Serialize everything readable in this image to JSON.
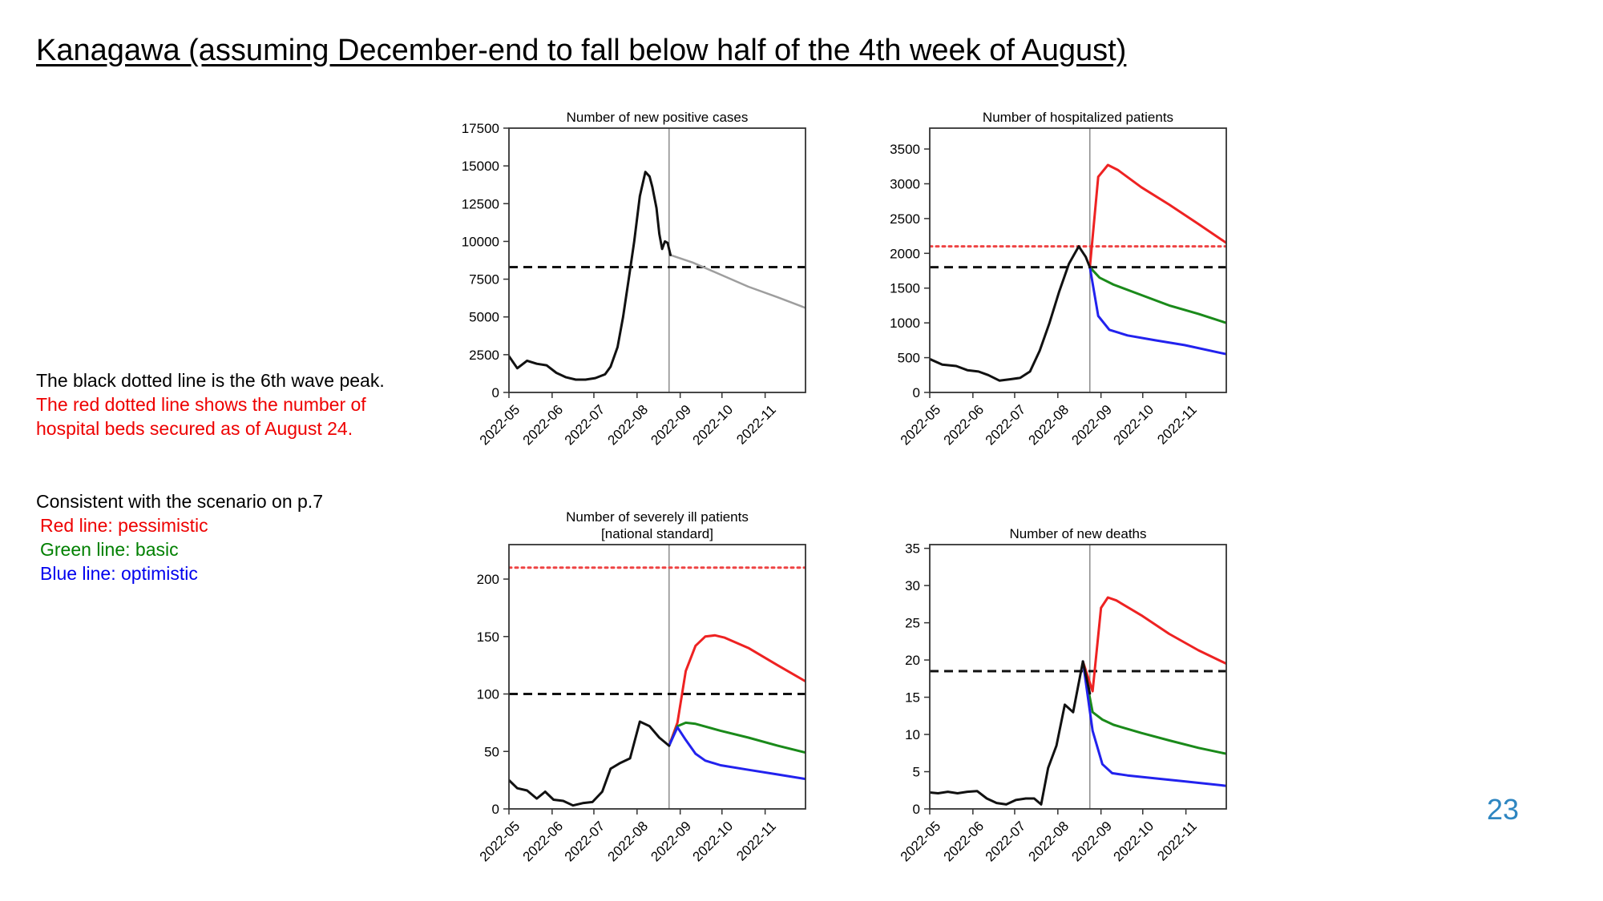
{
  "page": {
    "title": "Kanagawa (assuming December-end to fall below half of the 4th week of August)",
    "page_number": "23",
    "note1": {
      "line1": "The black dotted line is the 6th wave peak.",
      "line2": "The red dotted line shows the number of",
      "line3": "hospital beds secured as of August 24."
    },
    "note2": {
      "line1": "Consistent with the scenario on p.7",
      "line2": "Red line: pessimistic",
      "line3": "Green line: basic",
      "line4": "Blue line: optimistic"
    }
  },
  "colors": {
    "actual": "#111111",
    "forecast": "#9e9e9e",
    "pessimistic": "#ee2222",
    "basic": "#1a8a1a",
    "optimistic": "#2222ee",
    "sixth_wave_peak": "#111111",
    "beds_secured": "#ee4444",
    "note_red": "#ee0000",
    "note_green": "#008000",
    "note_blue": "#0000ee",
    "page_number": "#2e86c1"
  },
  "chart_data": [
    {
      "id": "positive",
      "type": "line",
      "title": [
        "Number of new positive cases"
      ],
      "x_ticks": [
        "2022-05",
        "2022-06",
        "2022-07",
        "2022-08",
        "2022-09",
        "2022-10",
        "2022-11"
      ],
      "x_range": [
        "2022-05-01",
        "2022-11-30"
      ],
      "ylim": [
        0,
        17500
      ],
      "y_ticks": [
        0,
        2500,
        5000,
        7500,
        10000,
        12500,
        15000,
        17500
      ],
      "grid": false,
      "current_date_line": "2022-08-24",
      "reference_lines": [
        {
          "label": "sixth_wave_peak",
          "value": 8300,
          "style": "dashed"
        }
      ],
      "series": [
        {
          "role": "actual",
          "points": [
            [
              "2022-05-01",
              2400
            ],
            [
              "2022-05-07",
              1600
            ],
            [
              "2022-05-14",
              2100
            ],
            [
              "2022-05-21",
              1900
            ],
            [
              "2022-05-28",
              1800
            ],
            [
              "2022-06-04",
              1300
            ],
            [
              "2022-06-11",
              1000
            ],
            [
              "2022-06-18",
              850
            ],
            [
              "2022-06-25",
              850
            ],
            [
              "2022-07-02",
              950
            ],
            [
              "2022-07-09",
              1200
            ],
            [
              "2022-07-13",
              1700
            ],
            [
              "2022-07-18",
              3000
            ],
            [
              "2022-07-22",
              5000
            ],
            [
              "2022-07-26",
              7500
            ],
            [
              "2022-07-30",
              10000
            ],
            [
              "2022-08-03",
              13000
            ],
            [
              "2022-08-07",
              14600
            ],
            [
              "2022-08-10",
              14300
            ],
            [
              "2022-08-12",
              13600
            ],
            [
              "2022-08-15",
              12200
            ],
            [
              "2022-08-17",
              10500
            ],
            [
              "2022-08-19",
              9500
            ],
            [
              "2022-08-21",
              10000
            ],
            [
              "2022-08-23",
              9900
            ],
            [
              "2022-08-25",
              9100
            ]
          ]
        },
        {
          "role": "forecast",
          "points": [
            [
              "2022-08-25",
              9100
            ],
            [
              "2022-09-10",
              8600
            ],
            [
              "2022-09-30",
              7800
            ],
            [
              "2022-10-20",
              7000
            ],
            [
              "2022-11-10",
              6300
            ],
            [
              "2022-11-30",
              5600
            ]
          ]
        }
      ]
    },
    {
      "id": "hospitalized",
      "type": "line",
      "title": [
        "Number of hospitalized patients"
      ],
      "x_ticks": [
        "2022-05",
        "2022-06",
        "2022-07",
        "2022-08",
        "2022-09",
        "2022-10",
        "2022-11"
      ],
      "x_range": [
        "2022-05-01",
        "2022-11-30"
      ],
      "ylim": [
        0,
        3800
      ],
      "y_ticks": [
        0,
        500,
        1000,
        1500,
        2000,
        2500,
        3000,
        3500
      ],
      "grid": false,
      "current_date_line": "2022-08-24",
      "reference_lines": [
        {
          "label": "sixth_wave_peak",
          "value": 1800,
          "style": "dashed"
        },
        {
          "label": "beds_secured",
          "value": 2100,
          "style": "dotted"
        }
      ],
      "series": [
        {
          "role": "actual",
          "points": [
            [
              "2022-05-01",
              480
            ],
            [
              "2022-05-10",
              400
            ],
            [
              "2022-05-20",
              380
            ],
            [
              "2022-05-28",
              320
            ],
            [
              "2022-06-05",
              300
            ],
            [
              "2022-06-12",
              250
            ],
            [
              "2022-06-20",
              170
            ],
            [
              "2022-06-28",
              190
            ],
            [
              "2022-07-05",
              210
            ],
            [
              "2022-07-12",
              300
            ],
            [
              "2022-07-19",
              600
            ],
            [
              "2022-07-26",
              1000
            ],
            [
              "2022-08-02",
              1450
            ],
            [
              "2022-08-09",
              1850
            ],
            [
              "2022-08-16",
              2100
            ],
            [
              "2022-08-21",
              1950
            ],
            [
              "2022-08-24",
              1800
            ]
          ]
        },
        {
          "role": "pessimistic",
          "points": [
            [
              "2022-08-24",
              1800
            ],
            [
              "2022-08-30",
              3100
            ],
            [
              "2022-09-06",
              3270
            ],
            [
              "2022-09-13",
              3200
            ],
            [
              "2022-09-30",
              2950
            ],
            [
              "2022-10-20",
              2700
            ],
            [
              "2022-11-10",
              2420
            ],
            [
              "2022-11-30",
              2150
            ]
          ]
        },
        {
          "role": "basic",
          "points": [
            [
              "2022-08-24",
              1800
            ],
            [
              "2022-08-31",
              1650
            ],
            [
              "2022-09-10",
              1550
            ],
            [
              "2022-09-30",
              1400
            ],
            [
              "2022-10-20",
              1250
            ],
            [
              "2022-11-10",
              1130
            ],
            [
              "2022-11-30",
              1000
            ]
          ]
        },
        {
          "role": "optimistic",
          "points": [
            [
              "2022-08-24",
              1800
            ],
            [
              "2022-08-30",
              1100
            ],
            [
              "2022-09-07",
              900
            ],
            [
              "2022-09-20",
              820
            ],
            [
              "2022-10-10",
              750
            ],
            [
              "2022-10-31",
              680
            ],
            [
              "2022-11-30",
              550
            ]
          ]
        }
      ]
    },
    {
      "id": "severe",
      "type": "line",
      "title": [
        "Number of severely ill patients",
        "[national standard]"
      ],
      "x_ticks": [
        "2022-05",
        "2022-06",
        "2022-07",
        "2022-08",
        "2022-09",
        "2022-10",
        "2022-11"
      ],
      "x_range": [
        "2022-05-01",
        "2022-11-30"
      ],
      "ylim": [
        0,
        230
      ],
      "y_ticks": [
        0,
        50,
        100,
        150,
        200
      ],
      "grid": false,
      "current_date_line": "2022-08-24",
      "reference_lines": [
        {
          "label": "sixth_wave_peak",
          "value": 100,
          "style": "dashed"
        },
        {
          "label": "beds_secured",
          "value": 210,
          "style": "dotted"
        }
      ],
      "series": [
        {
          "role": "actual",
          "points": [
            [
              "2022-05-01",
              25
            ],
            [
              "2022-05-07",
              18
            ],
            [
              "2022-05-14",
              16
            ],
            [
              "2022-05-21",
              9
            ],
            [
              "2022-05-27",
              15
            ],
            [
              "2022-06-02",
              8
            ],
            [
              "2022-06-09",
              7
            ],
            [
              "2022-06-16",
              3
            ],
            [
              "2022-06-23",
              5
            ],
            [
              "2022-06-30",
              6
            ],
            [
              "2022-07-07",
              15
            ],
            [
              "2022-07-13",
              35
            ],
            [
              "2022-07-20",
              40
            ],
            [
              "2022-07-27",
              44
            ],
            [
              "2022-08-03",
              76
            ],
            [
              "2022-08-10",
              72
            ],
            [
              "2022-08-17",
              62
            ],
            [
              "2022-08-24",
              55
            ]
          ]
        },
        {
          "role": "pessimistic",
          "points": [
            [
              "2022-08-24",
              55
            ],
            [
              "2022-08-30",
              75
            ],
            [
              "2022-09-05",
              120
            ],
            [
              "2022-09-12",
              142
            ],
            [
              "2022-09-19",
              150
            ],
            [
              "2022-09-26",
              151
            ],
            [
              "2022-10-03",
              149
            ],
            [
              "2022-10-20",
              140
            ],
            [
              "2022-11-10",
              125
            ],
            [
              "2022-11-30",
              111
            ]
          ]
        },
        {
          "role": "basic",
          "points": [
            [
              "2022-08-24",
              55
            ],
            [
              "2022-08-30",
              72
            ],
            [
              "2022-09-05",
              75
            ],
            [
              "2022-09-12",
              74
            ],
            [
              "2022-09-30",
              68
            ],
            [
              "2022-10-20",
              62
            ],
            [
              "2022-11-10",
              55
            ],
            [
              "2022-11-30",
              49
            ]
          ]
        },
        {
          "role": "optimistic",
          "points": [
            [
              "2022-08-24",
              55
            ],
            [
              "2022-08-30",
              71
            ],
            [
              "2022-09-05",
              60
            ],
            [
              "2022-09-12",
              48
            ],
            [
              "2022-09-19",
              42
            ],
            [
              "2022-09-30",
              38
            ],
            [
              "2022-10-20",
              34
            ],
            [
              "2022-11-10",
              30
            ],
            [
              "2022-11-30",
              26
            ]
          ]
        }
      ]
    },
    {
      "id": "deaths",
      "type": "line",
      "title": [
        "Number of new deaths"
      ],
      "x_ticks": [
        "2022-05",
        "2022-06",
        "2022-07",
        "2022-08",
        "2022-09",
        "2022-10",
        "2022-11"
      ],
      "x_range": [
        "2022-05-01",
        "2022-11-30"
      ],
      "ylim": [
        0,
        35.5
      ],
      "y_ticks": [
        0,
        5,
        10,
        15,
        20,
        25,
        30,
        35
      ],
      "grid": false,
      "current_date_line": "2022-08-24",
      "reference_lines": [
        {
          "label": "sixth_wave_peak",
          "value": 18.5,
          "style": "dashed"
        }
      ],
      "series": [
        {
          "role": "actual",
          "points": [
            [
              "2022-05-01",
              2.2
            ],
            [
              "2022-05-07",
              2.1
            ],
            [
              "2022-05-14",
              2.3
            ],
            [
              "2022-05-21",
              2.1
            ],
            [
              "2022-05-28",
              2.3
            ],
            [
              "2022-06-04",
              2.4
            ],
            [
              "2022-06-11",
              1.4
            ],
            [
              "2022-06-18",
              0.8
            ],
            [
              "2022-06-25",
              0.6
            ],
            [
              "2022-07-02",
              1.2
            ],
            [
              "2022-07-09",
              1.4
            ],
            [
              "2022-07-15",
              1.4
            ],
            [
              "2022-07-20",
              0.6
            ],
            [
              "2022-07-25",
              5.5
            ],
            [
              "2022-07-31",
              8.5
            ],
            [
              "2022-08-06",
              14
            ],
            [
              "2022-08-12",
              13
            ],
            [
              "2022-08-19",
              19.8
            ],
            [
              "2022-08-24",
              15.5
            ]
          ]
        },
        {
          "role": "pessimistic",
          "points": [
            [
              "2022-08-19",
              19.8
            ],
            [
              "2022-08-26",
              15.8
            ],
            [
              "2022-09-01",
              27
            ],
            [
              "2022-09-06",
              28.4
            ],
            [
              "2022-09-12",
              28
            ],
            [
              "2022-09-30",
              26
            ],
            [
              "2022-10-20",
              23.5
            ],
            [
              "2022-11-10",
              21.3
            ],
            [
              "2022-11-30",
              19.5
            ]
          ]
        },
        {
          "role": "basic",
          "points": [
            [
              "2022-08-19",
              19.8
            ],
            [
              "2022-08-26",
              13
            ],
            [
              "2022-09-02",
              12
            ],
            [
              "2022-09-10",
              11.3
            ],
            [
              "2022-09-30",
              10.2
            ],
            [
              "2022-10-20",
              9.2
            ],
            [
              "2022-11-10",
              8.2
            ],
            [
              "2022-11-30",
              7.4
            ]
          ]
        },
        {
          "role": "optimistic",
          "points": [
            [
              "2022-08-19",
              19.8
            ],
            [
              "2022-08-26",
              10.5
            ],
            [
              "2022-09-02",
              6
            ],
            [
              "2022-09-09",
              4.8
            ],
            [
              "2022-09-20",
              4.5
            ],
            [
              "2022-10-10",
              4.1
            ],
            [
              "2022-10-31",
              3.7
            ],
            [
              "2022-11-30",
              3.1
            ]
          ]
        }
      ]
    }
  ]
}
